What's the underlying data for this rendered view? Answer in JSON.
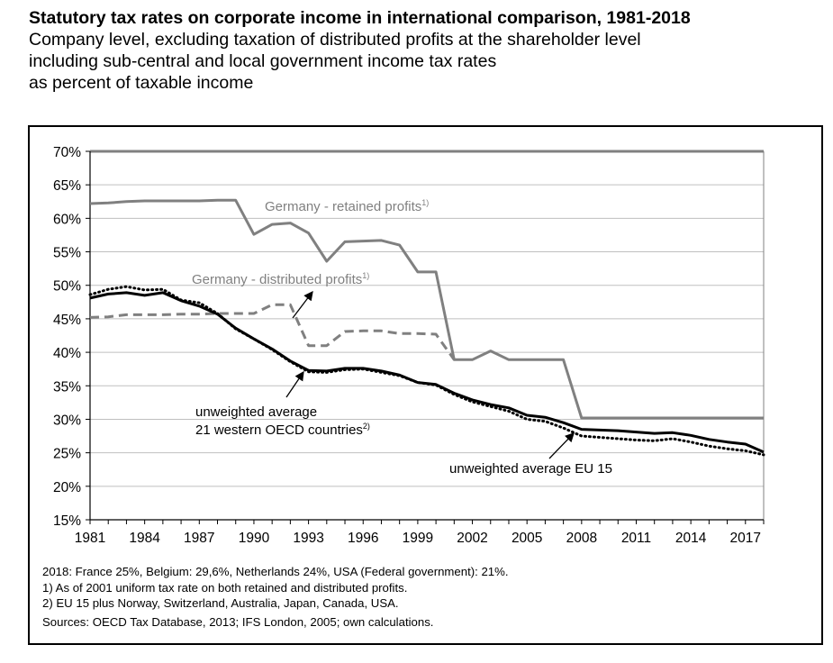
{
  "chart_data": {
    "type": "line",
    "title": "Statutory tax rates on corporate income in international comparison, 1981-2018",
    "subtitle_lines": [
      "Company level, excluding taxation of distributed profits at the shareholder level",
      "including sub-central and local government income tax rates",
      "as percent of taxable income"
    ],
    "xlim": [
      1981,
      2018
    ],
    "ylim": [
      15,
      70
    ],
    "x_ticks": [
      "1981",
      "1984",
      "1987",
      "1990",
      "1993",
      "1996",
      "1999",
      "2002",
      "2005",
      "2008",
      "2011",
      "2014",
      "2017"
    ],
    "y_ticks": [
      "15%",
      "20%",
      "25%",
      "30%",
      "35%",
      "40%",
      "45%",
      "50%",
      "55%",
      "60%",
      "65%",
      "70%"
    ],
    "series": [
      {
        "name": "Germany - retained profits",
        "color": "#808080",
        "style": "solid",
        "points": [
          [
            1981,
            62.2
          ],
          [
            1982,
            62.3
          ],
          [
            1983,
            62.5
          ],
          [
            1984,
            62.6
          ],
          [
            1985,
            62.6
          ],
          [
            1986,
            62.6
          ],
          [
            1987,
            62.6
          ],
          [
            1988,
            62.7
          ],
          [
            1989,
            62.7
          ],
          [
            1990,
            57.6
          ],
          [
            1991,
            59.1
          ],
          [
            1992,
            59.3
          ],
          [
            1993,
            57.8
          ],
          [
            1994,
            53.6
          ],
          [
            1995,
            56.5
          ],
          [
            1996,
            56.6
          ],
          [
            1997,
            56.7
          ],
          [
            1998,
            56.0
          ],
          [
            1999,
            52.0
          ],
          [
            2000,
            52.0
          ],
          [
            2001,
            38.9
          ],
          [
            2002,
            38.9
          ],
          [
            2003,
            40.2
          ],
          [
            2004,
            38.9
          ],
          [
            2005,
            38.9
          ],
          [
            2006,
            38.9
          ],
          [
            2007,
            38.9
          ],
          [
            2008,
            30.2
          ],
          [
            2009,
            30.2
          ],
          [
            2010,
            30.2
          ],
          [
            2011,
            30.2
          ],
          [
            2012,
            30.2
          ],
          [
            2013,
            30.2
          ],
          [
            2014,
            30.2
          ],
          [
            2015,
            30.2
          ],
          [
            2016,
            30.2
          ],
          [
            2017,
            30.2
          ],
          [
            2018,
            30.2
          ]
        ]
      },
      {
        "name": "Germany - distributed profits",
        "color": "#808080",
        "style": "dashed",
        "points": [
          [
            1981,
            45.2
          ],
          [
            1982,
            45.3
          ],
          [
            1983,
            45.6
          ],
          [
            1984,
            45.6
          ],
          [
            1985,
            45.6
          ],
          [
            1986,
            45.7
          ],
          [
            1987,
            45.7
          ],
          [
            1988,
            45.8
          ],
          [
            1989,
            45.8
          ],
          [
            1990,
            45.8
          ],
          [
            1991,
            47.1
          ],
          [
            1992,
            47.1
          ],
          [
            1993,
            41.0
          ],
          [
            1994,
            41.0
          ],
          [
            1995,
            43.1
          ],
          [
            1996,
            43.2
          ],
          [
            1997,
            43.2
          ],
          [
            1998,
            42.8
          ],
          [
            1999,
            42.8
          ],
          [
            2000,
            42.7
          ],
          [
            2001,
            38.9
          ]
        ]
      },
      {
        "name": "unweighted average 21 western OECD countries",
        "color": "#000000",
        "style": "solid",
        "points": [
          [
            1981,
            48.1
          ],
          [
            1982,
            48.7
          ],
          [
            1983,
            48.9
          ],
          [
            1984,
            48.5
          ],
          [
            1985,
            48.9
          ],
          [
            1986,
            47.7
          ],
          [
            1987,
            46.9
          ],
          [
            1988,
            45.7
          ],
          [
            1989,
            43.6
          ],
          [
            1990,
            42.0
          ],
          [
            1991,
            40.5
          ],
          [
            1992,
            38.7
          ],
          [
            1993,
            37.3
          ],
          [
            1994,
            37.2
          ],
          [
            1995,
            37.6
          ],
          [
            1996,
            37.6
          ],
          [
            1997,
            37.2
          ],
          [
            1998,
            36.6
          ],
          [
            1999,
            35.5
          ],
          [
            2000,
            35.2
          ],
          [
            2001,
            33.9
          ],
          [
            2002,
            32.9
          ],
          [
            2003,
            32.2
          ],
          [
            2004,
            31.7
          ],
          [
            2005,
            30.6
          ],
          [
            2006,
            30.3
          ],
          [
            2007,
            29.5
          ],
          [
            2008,
            28.5
          ],
          [
            2009,
            28.4
          ],
          [
            2010,
            28.3
          ],
          [
            2011,
            28.1
          ],
          [
            2012,
            27.9
          ],
          [
            2013,
            28.0
          ],
          [
            2014,
            27.6
          ],
          [
            2015,
            27.0
          ],
          [
            2016,
            26.6
          ],
          [
            2017,
            26.3
          ],
          [
            2018,
            25.1
          ]
        ]
      },
      {
        "name": "unweighted average EU 15",
        "color": "#000000",
        "style": "dotted",
        "points": [
          [
            1981,
            48.6
          ],
          [
            1982,
            49.4
          ],
          [
            1983,
            49.8
          ],
          [
            1984,
            49.3
          ],
          [
            1985,
            49.4
          ],
          [
            1986,
            47.8
          ],
          [
            1987,
            47.4
          ],
          [
            1988,
            45.8
          ],
          [
            1989,
            43.5
          ],
          [
            1990,
            42.0
          ],
          [
            1991,
            40.4
          ],
          [
            1992,
            38.6
          ],
          [
            1993,
            37.1
          ],
          [
            1994,
            37.0
          ],
          [
            1995,
            37.4
          ],
          [
            1996,
            37.5
          ],
          [
            1997,
            37.0
          ],
          [
            1998,
            36.5
          ],
          [
            1999,
            35.5
          ],
          [
            2000,
            35.1
          ],
          [
            2001,
            33.7
          ],
          [
            2002,
            32.6
          ],
          [
            2003,
            31.9
          ],
          [
            2004,
            31.2
          ],
          [
            2005,
            30.0
          ],
          [
            2006,
            29.7
          ],
          [
            2007,
            28.7
          ],
          [
            2008,
            27.5
          ],
          [
            2009,
            27.3
          ],
          [
            2010,
            27.1
          ],
          [
            2011,
            26.9
          ],
          [
            2012,
            26.8
          ],
          [
            2013,
            27.1
          ],
          [
            2014,
            26.6
          ],
          [
            2015,
            26.0
          ],
          [
            2016,
            25.6
          ],
          [
            2017,
            25.3
          ],
          [
            2018,
            24.7
          ]
        ]
      }
    ],
    "annotations": {
      "retained": "Germany - retained profits",
      "distributed": "Germany - distributed profits",
      "sup1": "1)",
      "oecd_line1": "unweighted average",
      "oecd_line2": "21 western OECD countries",
      "sup2": "2)",
      "eu15": "unweighted average EU 15"
    },
    "footnotes": [
      "2018: France 25%, Belgium: 29,6%, Netherlands 24%, USA (Federal government): 21%.",
      "1) As of 2001 uniform tax rate on both retained and distributed profits.",
      "2) EU 15 plus Norway, Switzerland, Australia, Japan, Canada, USA.",
      "Sources: OECD Tax Database, 2013; IFS London, 2005; own calculations."
    ]
  }
}
